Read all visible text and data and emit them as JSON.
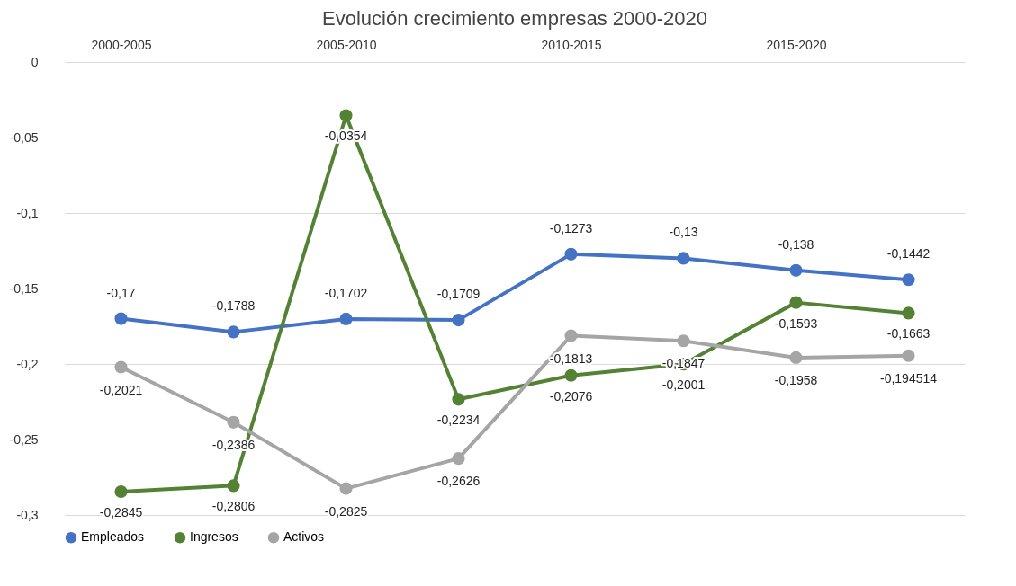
{
  "chart_data": {
    "type": "line",
    "title": "Evolución crecimiento empresas 2000-2020",
    "categories": [
      "2000-2005",
      null,
      "2005-2010",
      null,
      "2010-2015",
      null,
      "2015-2020",
      null
    ],
    "series": [
      {
        "name": "Empleados",
        "color": "#4472c4",
        "values": [
          -0.17,
          -0.1788,
          -0.1702,
          -0.1709,
          -0.1273,
          -0.13,
          -0.138,
          -0.1442
        ],
        "value_labels": [
          "-0,17",
          "-0,1788",
          "-0,1702",
          "-0,1709",
          "-0,1273",
          "-0,13",
          "-0,138",
          "-0,1442"
        ]
      },
      {
        "name": "Ingresos",
        "color": "#548235",
        "values": [
          -0.2845,
          -0.2806,
          -0.0354,
          -0.2234,
          -0.2076,
          -0.2001,
          -0.1593,
          -0.1663
        ],
        "value_labels": [
          "-0,2845",
          "-0,2806",
          "-0,0354",
          "-0,2234",
          "-0,2076",
          "-0,2001",
          "-0,1593",
          "-0,1663"
        ]
      },
      {
        "name": "Activos",
        "color": "#a5a5a5",
        "values": [
          -0.2021,
          -0.2386,
          -0.2825,
          -0.2626,
          -0.1813,
          -0.1847,
          -0.1958,
          -0.194514
        ],
        "value_labels": [
          "-0,2021",
          "-0,2386",
          "-0,2825",
          "-0,2626",
          "-0,1813",
          "-0,1847",
          "-0,1958",
          "-0,194514"
        ]
      }
    ],
    "ylim": [
      -0.3,
      0
    ],
    "yticks": [
      0,
      {
        "value": -0.05,
        "label": "-0,05"
      },
      {
        "value": -0.1,
        "label": "-0,1"
      },
      {
        "value": -0.15,
        "label": "-0,15"
      },
      {
        "value": -0.2,
        "label": "-0,2"
      },
      {
        "value": -0.25,
        "label": "-0,25"
      },
      {
        "value": -0.3,
        "label": "-0,3"
      }
    ],
    "grid": "y",
    "legend": "bottom",
    "marker": "circle",
    "line_style": "solid"
  }
}
